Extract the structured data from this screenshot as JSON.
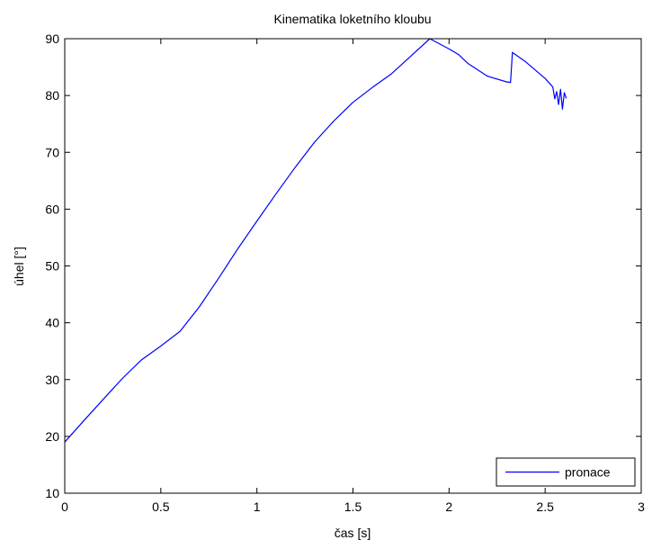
{
  "chart_data": {
    "type": "line",
    "title": "Kinematika loketního kloubu",
    "xlabel": "čas [s]",
    "ylabel": "úhel [°]",
    "xlim": [
      0,
      3
    ],
    "ylim": [
      10,
      90
    ],
    "xticks": [
      0,
      0.5,
      1,
      1.5,
      2,
      2.5,
      3
    ],
    "xtick_labels": [
      "0",
      "0.5",
      "1",
      "1.5",
      "2",
      "2.5",
      "3"
    ],
    "yticks": [
      10,
      20,
      30,
      40,
      50,
      60,
      70,
      80,
      90
    ],
    "ytick_labels": [
      "10",
      "20",
      "30",
      "40",
      "50",
      "60",
      "70",
      "80",
      "90"
    ],
    "grid": false,
    "legend_position": "bottom-right",
    "series": [
      {
        "name": "pronace",
        "color": "#0000ff",
        "x": [
          0,
          0.1,
          0.2,
          0.3,
          0.4,
          0.5,
          0.6,
          0.7,
          0.8,
          0.9,
          1.0,
          1.1,
          1.2,
          1.3,
          1.4,
          1.5,
          1.6,
          1.7,
          1.8,
          1.9,
          2.0,
          2.05,
          2.1,
          2.2,
          2.3,
          2.32,
          2.33,
          2.4,
          2.5,
          2.54,
          2.55,
          2.56,
          2.57,
          2.58,
          2.59,
          2.6,
          2.61
        ],
        "y": [
          19,
          22.8,
          26.5,
          30.2,
          33.5,
          35.9,
          38.5,
          42.8,
          47.8,
          53.0,
          57.9,
          62.7,
          67.4,
          71.8,
          75.5,
          78.8,
          81.4,
          83.8,
          86.9,
          90.0,
          88.2,
          87.2,
          85.6,
          83.4,
          82.4,
          82.3,
          87.6,
          85.9,
          83.0,
          81.5,
          79.4,
          80.7,
          78.4,
          81.1,
          77.6,
          80.5,
          79.5
        ]
      }
    ]
  }
}
